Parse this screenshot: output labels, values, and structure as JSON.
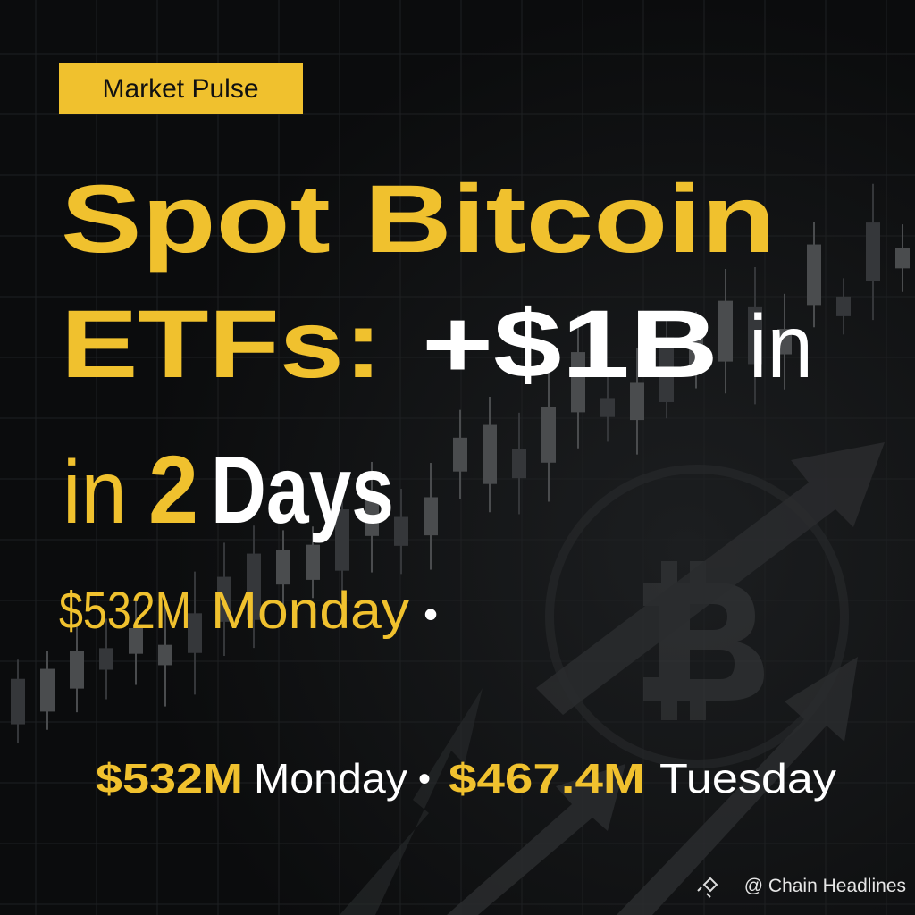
{
  "badge": "Market Pulse",
  "headline": {
    "line1": "Spot Bitcoin",
    "line2": [
      "ETFs:",
      "+$1B",
      "in"
    ],
    "line3": [
      "in",
      "2",
      "Days"
    ]
  },
  "subline": {
    "amount": "$532M",
    "day": "Monday",
    "separator": "•"
  },
  "footer": {
    "amount1": "$532M",
    "day1": "Monday",
    "separator": "•",
    "amount2": "$467.4M",
    "day2": "Tuesday"
  },
  "watermark": "@ Chain Headlines"
}
